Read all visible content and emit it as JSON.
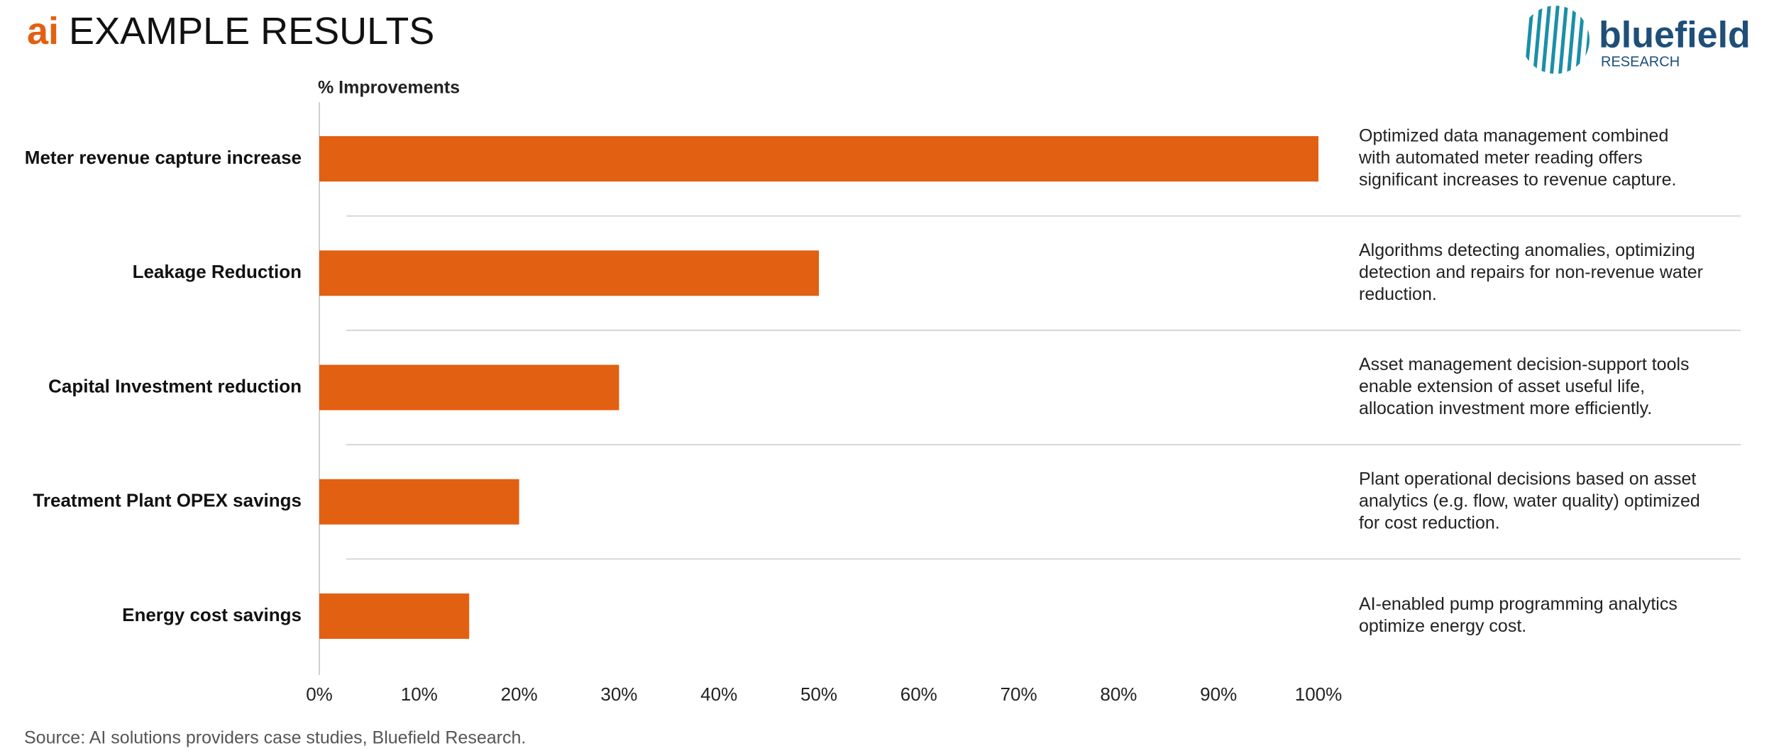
{
  "chart_data": {
    "type": "bar",
    "orientation": "horizontal",
    "title_prefix": "ai",
    "title": "EXAMPLE RESULTS",
    "axis_label": "% Improvements",
    "categories": [
      "Meter revenue capture increase",
      "Leakage Reduction",
      "Capital Investment reduction",
      "Treatment Plant OPEX savings",
      "Energy cost savings"
    ],
    "values": [
      100,
      50,
      30,
      20,
      15
    ],
    "color": "#e26012",
    "xlim": [
      0,
      100
    ],
    "xticks": [
      {
        "value": 0,
        "label": "0%"
      },
      {
        "value": 10,
        "label": "10%"
      },
      {
        "value": 20,
        "label": "20%"
      },
      {
        "value": 30,
        "label": "30%"
      },
      {
        "value": 40,
        "label": "40%"
      },
      {
        "value": 50,
        "label": "50%"
      },
      {
        "value": 60,
        "label": "60%"
      },
      {
        "value": 70,
        "label": "70%"
      },
      {
        "value": 80,
        "label": "80%"
      },
      {
        "value": 90,
        "label": "90%"
      },
      {
        "value": 100,
        "label": "100%"
      }
    ],
    "notes": [
      [
        "Optimized data management combined",
        "with automated meter reading offers",
        "significant increases to revenue capture."
      ],
      [
        "Algorithms detecting anomalies, optimizing",
        "detection and repairs for non-revenue water",
        "reduction."
      ],
      [
        "Asset management decision-support tools",
        "enable extension of asset useful life,",
        "allocation investment more efficiently."
      ],
      [
        "Plant operational decisions based on asset",
        "analytics (e.g. flow, water quality) optimized",
        "for cost reduction."
      ],
      [
        "AI-enabled pump programming analytics",
        "optimize energy cost."
      ]
    ],
    "source": "Source: AI solutions providers case studies, Bluefield Research.",
    "logo": {
      "name": "bluefield",
      "sub": "RESEARCH"
    }
  }
}
